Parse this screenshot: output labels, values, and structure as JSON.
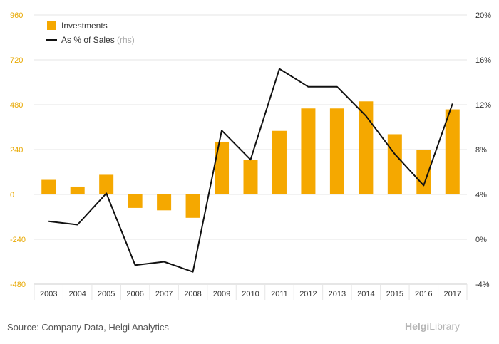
{
  "chart_data": {
    "type": "bar",
    "categories": [
      "2003",
      "2004",
      "2005",
      "2006",
      "2007",
      "2008",
      "2009",
      "2010",
      "2011",
      "2012",
      "2013",
      "2014",
      "2015",
      "2016",
      "2017"
    ],
    "series": [
      {
        "name": "Investments",
        "type": "bar",
        "axis": "left",
        "color": "#f5a800",
        "values": [
          78,
          42,
          105,
          -72,
          -85,
          -125,
          282,
          185,
          340,
          460,
          460,
          498,
          322,
          240,
          455
        ]
      },
      {
        "name": "As % of Sales",
        "type": "line",
        "axis": "right",
        "color": "#111111",
        "values": [
          1.6,
          1.3,
          4.1,
          -2.3,
          -2.0,
          -2.9,
          9.7,
          7.1,
          15.2,
          13.6,
          13.6,
          11.0,
          7.6,
          4.8,
          12.1
        ]
      }
    ],
    "y_left": {
      "min": -480,
      "max": 960,
      "ticks": [
        "960",
        "720",
        "480",
        "240",
        "0",
        "-240",
        "-480"
      ],
      "tick_values": [
        960,
        720,
        480,
        240,
        0,
        -240,
        -480
      ]
    },
    "y_right": {
      "min": -4,
      "max": 20,
      "ticks": [
        "20%",
        "16%",
        "12%",
        "8%",
        "4%",
        "0%",
        "-4%"
      ],
      "tick_values": [
        20,
        16,
        12,
        8,
        4,
        0,
        -4
      ]
    },
    "legend": {
      "placement": "top-left",
      "items": [
        {
          "label": "Investments"
        },
        {
          "label": "As % of Sales",
          "suffix": " (rhs)"
        }
      ]
    },
    "grid": true
  },
  "footer": {
    "source": "Source: Company Data, Helgi Analytics"
  },
  "logo": {
    "brand": "Helgi",
    "product": "Library"
  }
}
